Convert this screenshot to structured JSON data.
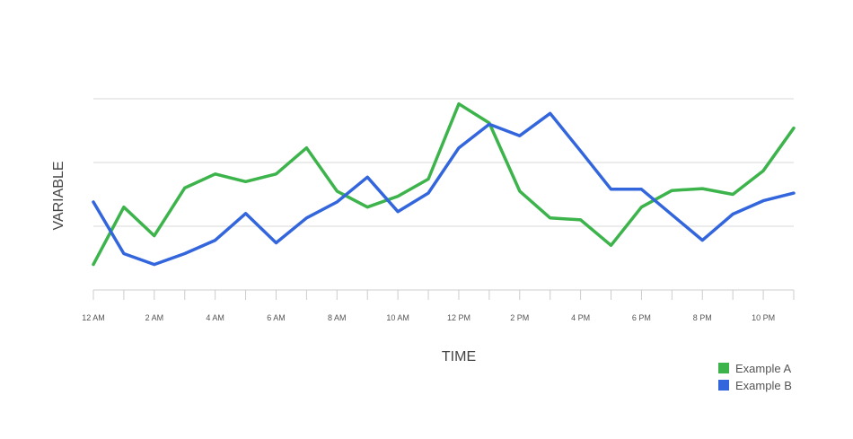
{
  "chart_data": {
    "type": "line",
    "title": "",
    "xlabel": "TIME",
    "ylabel": "VARIABLE",
    "x": [
      "12 AM",
      "1 AM",
      "2 AM",
      "3 AM",
      "4 AM",
      "5 AM",
      "6 AM",
      "7 AM",
      "8 AM",
      "9 AM",
      "10 AM",
      "11 AM",
      "12 PM",
      "1 PM",
      "2 PM",
      "3 PM",
      "4 PM",
      "5 PM",
      "6 PM",
      "7 PM",
      "8 PM",
      "9 PM",
      "10 PM",
      "11 PM"
    ],
    "tick_labels": [
      "12 AM",
      "2 AM",
      "4 AM",
      "6 AM",
      "8 AM",
      "10 AM",
      "12 PM",
      "2 PM",
      "4 PM",
      "6 PM",
      "8 PM",
      "10 PM"
    ],
    "ylim": [
      0,
      3
    ],
    "y_gridlines": [
      1,
      2,
      3
    ],
    "y_tick_labels_shown": false,
    "grid": true,
    "legend_position": "bottom-right",
    "series": [
      {
        "name": "Example A",
        "color": "#3cb44b",
        "values": [
          0.4,
          1.3,
          0.85,
          1.6,
          1.82,
          1.7,
          1.82,
          2.23,
          1.55,
          1.3,
          1.47,
          1.74,
          2.92,
          2.62,
          1.55,
          1.13,
          1.1,
          0.7,
          1.3,
          1.56,
          1.59,
          1.5,
          1.87,
          2.54
        ]
      },
      {
        "name": "Example B",
        "color": "#3366dd",
        "values": [
          1.38,
          0.57,
          0.4,
          0.57,
          0.78,
          1.2,
          0.74,
          1.13,
          1.38,
          1.77,
          1.23,
          1.52,
          2.23,
          2.6,
          2.42,
          2.77,
          2.18,
          1.58,
          1.58,
          1.18,
          0.78,
          1.19,
          1.4,
          1.52
        ]
      }
    ]
  }
}
